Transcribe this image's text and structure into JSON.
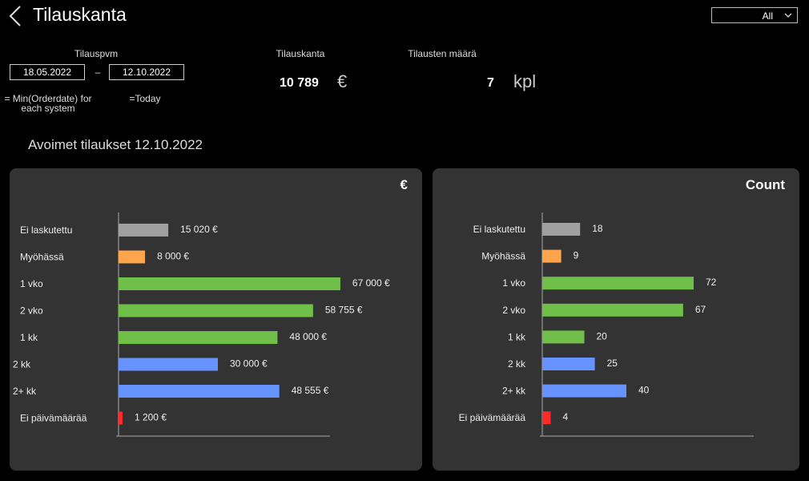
{
  "header": {
    "title": "Tilauskanta",
    "filter_value": "All",
    "back_icon": "chevron-left-icon"
  },
  "filters": {
    "date_label": "Tilauspvm",
    "start_date": "18.05.2022",
    "separator": "–",
    "end_date": "12.10.2022",
    "start_note": "= Min(Orderdate) for each system",
    "end_note": "=Today"
  },
  "kpis": {
    "order_stock": {
      "label": "Tilauskanta",
      "value": "10 789",
      "unit": "€"
    },
    "order_count": {
      "label": "Tilausten määrä",
      "value": "7",
      "unit": "kpl"
    }
  },
  "section_title": "Avoimet tilaukset 12.10.2022",
  "colors": {
    "gray": "#a0a0a0",
    "orange": "#ffa64d",
    "green": "#70bf48",
    "blue": "#6693ff",
    "red": "#ff2a2a"
  },
  "chart_data": [
    {
      "type": "bar",
      "orientation": "horizontal",
      "title": "€",
      "categories": [
        "Ei laskutettu",
        "Myöhässä",
        "1 vko",
        "2 vko",
        "1 kk",
        "2 kk",
        "2+ kk",
        "Ei päivämäärää"
      ],
      "values": [
        15020,
        8000,
        67000,
        58755,
        48000,
        30000,
        48555,
        1200
      ],
      "value_labels": [
        "15 020 €",
        "8 000 €",
        "67 000 €",
        "58 755 €",
        "48 000 €",
        "30 000 €",
        "48 555 €",
        "1 200 €"
      ],
      "bar_colors": [
        "gray",
        "orange",
        "green",
        "green",
        "green",
        "blue",
        "blue",
        "red"
      ],
      "xlim": [
        0,
        90000
      ]
    },
    {
      "type": "bar",
      "orientation": "horizontal",
      "title": "Count",
      "categories": [
        "Ei laskutettu",
        "Myöhässä",
        "1 vko",
        "2 vko",
        "1 kk",
        "2 kk",
        "2+ kk",
        "Ei päivämäärää"
      ],
      "values": [
        18,
        9,
        72,
        67,
        20,
        25,
        40,
        4
      ],
      "value_labels": [
        "18",
        "9",
        "72",
        "67",
        "20",
        "25",
        "40",
        "4"
      ],
      "bar_colors": [
        "gray",
        "orange",
        "green",
        "green",
        "green",
        "blue",
        "blue",
        "red"
      ],
      "xlim": [
        0,
        104
      ]
    }
  ]
}
